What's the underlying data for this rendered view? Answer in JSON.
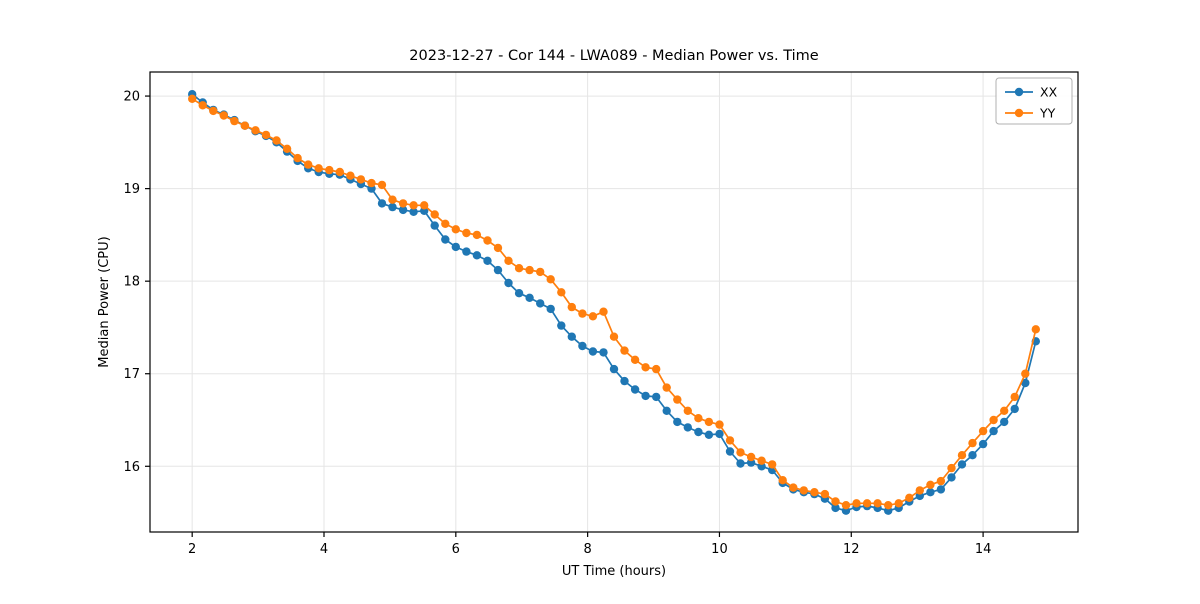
{
  "chart_data": {
    "type": "line",
    "title": "2023-12-27 - Cor 144 - LWA089 - Median Power vs. Time",
    "xlabel": "UT Time (hours)",
    "ylabel": "Median Power (CPU)",
    "xlim": [
      1.36,
      15.44
    ],
    "ylim": [
      15.29,
      20.26
    ],
    "xticks": [
      2,
      4,
      6,
      8,
      10,
      12,
      14
    ],
    "yticks": [
      16,
      17,
      18,
      19,
      20
    ],
    "grid": true,
    "grid_color": "#e5e5e5",
    "spine_color": "#000000",
    "legend_position": "upper right",
    "legend_labels": [
      "XX",
      "YY"
    ],
    "x": [
      2.0,
      2.16,
      2.32,
      2.48,
      2.64,
      2.8,
      2.96,
      3.12,
      3.28,
      3.44,
      3.6,
      3.76,
      3.92,
      4.08,
      4.24,
      4.4,
      4.56,
      4.72,
      4.88,
      5.04,
      5.2,
      5.36,
      5.52,
      5.68,
      5.84,
      6.0,
      6.16,
      6.32,
      6.48,
      6.64,
      6.8,
      6.96,
      7.12,
      7.28,
      7.44,
      7.6,
      7.76,
      7.92,
      8.08,
      8.24,
      8.4,
      8.56,
      8.72,
      8.88,
      9.04,
      9.2,
      9.36,
      9.52,
      9.68,
      9.84,
      10.0,
      10.16,
      10.32,
      10.48,
      10.64,
      10.8,
      10.96,
      11.12,
      11.28,
      11.44,
      11.6,
      11.76,
      11.92,
      12.08,
      12.24,
      12.4,
      12.56,
      12.72,
      12.88,
      13.04,
      13.2,
      13.36,
      13.52,
      13.68,
      13.84,
      14.0,
      14.16,
      14.32,
      14.48,
      14.64,
      14.8
    ],
    "series": [
      {
        "name": "XX",
        "color": "#1f77b4",
        "values": [
          20.02,
          19.93,
          19.85,
          19.8,
          19.74,
          19.68,
          19.62,
          19.57,
          19.5,
          19.4,
          19.3,
          19.22,
          19.18,
          19.16,
          19.15,
          19.1,
          19.05,
          19.0,
          18.84,
          18.8,
          18.77,
          18.75,
          18.76,
          18.6,
          18.45,
          18.37,
          18.32,
          18.28,
          18.22,
          18.12,
          17.98,
          17.87,
          17.82,
          17.76,
          17.7,
          17.52,
          17.4,
          17.3,
          17.24,
          17.23,
          17.05,
          16.92,
          16.83,
          16.76,
          16.75,
          16.6,
          16.48,
          16.42,
          16.37,
          16.34,
          16.35,
          16.16,
          16.03,
          16.04,
          16.0,
          15.96,
          15.82,
          15.75,
          15.72,
          15.7,
          15.65,
          15.55,
          15.52,
          15.56,
          15.57,
          15.55,
          15.52,
          15.55,
          15.62,
          15.68,
          15.72,
          15.75,
          15.88,
          16.02,
          16.12,
          16.24,
          16.38,
          16.48,
          16.62,
          16.9,
          17.35
        ]
      },
      {
        "name": "YY",
        "color": "#ff7f0e",
        "values": [
          19.97,
          19.9,
          19.84,
          19.79,
          19.73,
          19.68,
          19.63,
          19.58,
          19.52,
          19.43,
          19.33,
          19.26,
          19.22,
          19.2,
          19.18,
          19.14,
          19.1,
          19.06,
          19.04,
          18.88,
          18.84,
          18.82,
          18.82,
          18.72,
          18.62,
          18.56,
          18.52,
          18.5,
          18.44,
          18.36,
          18.22,
          18.14,
          18.12,
          18.1,
          18.02,
          17.88,
          17.72,
          17.65,
          17.62,
          17.67,
          17.4,
          17.25,
          17.15,
          17.07,
          17.05,
          16.85,
          16.72,
          16.6,
          16.52,
          16.48,
          16.45,
          16.28,
          16.15,
          16.1,
          16.06,
          16.02,
          15.85,
          15.77,
          15.74,
          15.72,
          15.7,
          15.62,
          15.58,
          15.6,
          15.6,
          15.6,
          15.58,
          15.6,
          15.66,
          15.74,
          15.8,
          15.84,
          15.98,
          16.12,
          16.25,
          16.38,
          16.5,
          16.6,
          16.75,
          17.0,
          17.48
        ]
      }
    ]
  }
}
